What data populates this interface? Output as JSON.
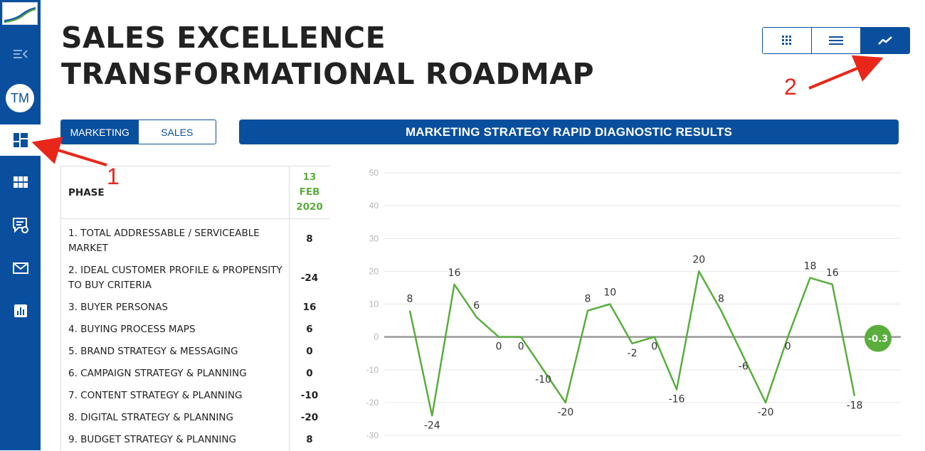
{
  "sidebar": {
    "avatar_initials": "TM",
    "items": [
      {
        "icon": "menu-collapse-icon"
      },
      {
        "icon": "dashboard-icon",
        "active": true
      },
      {
        "icon": "grid-icon"
      },
      {
        "icon": "chat-icon"
      },
      {
        "icon": "mail-icon"
      },
      {
        "icon": "bar-chart-icon"
      }
    ]
  },
  "header": {
    "title_line1": "SALES EXCELLENCE",
    "title_line2": "TRANSFORMATIONAL ROADMAP"
  },
  "view_toggle": {
    "items": [
      {
        "icon": "grid-view-icon"
      },
      {
        "icon": "list-view-icon"
      },
      {
        "icon": "chart-view-icon",
        "active": true
      }
    ]
  },
  "tabs": {
    "marketing": "MARKETING",
    "sales": "SALES",
    "active": "MARKETING"
  },
  "banner": "MARKETING STRATEGY RAPID DIAGNOSTIC RESULTS",
  "table": {
    "header_phase": "PHASE",
    "header_date": [
      "13",
      "FEB",
      "2020"
    ],
    "rows": [
      {
        "phase": "1. TOTAL ADDRESSABLE / SERVICEABLE MARKET",
        "value": "8"
      },
      {
        "phase": "2. IDEAL CUSTOMER PROFILE & PROPENSITY TO BUY CRITERIA",
        "value": "-24"
      },
      {
        "phase": "3. BUYER PERSONAS",
        "value": "16"
      },
      {
        "phase": "4. BUYING PROCESS MAPS",
        "value": "6"
      },
      {
        "phase": "5. BRAND STRATEGY & MESSAGING",
        "value": "0"
      },
      {
        "phase": "6. CAMPAIGN STRATEGY & PLANNING",
        "value": "0"
      },
      {
        "phase": "7. CONTENT STRATEGY & PLANNING",
        "value": "-10"
      },
      {
        "phase": "8. DIGITAL STRATEGY & PLANNING",
        "value": "-20"
      },
      {
        "phase": "9. BUDGET STRATEGY & PLANNING",
        "value": "8"
      }
    ]
  },
  "annotations": {
    "label1": "1",
    "label2": "2",
    "arrow_color": "#e8271a"
  },
  "colors": {
    "brand": "#0a4f9e",
    "series": "#59ae3c",
    "zero_line": "#999999"
  },
  "chart_data": {
    "type": "line",
    "ylim": [
      -30,
      50
    ],
    "yticks": [
      50,
      40,
      30,
      20,
      10,
      0,
      -10,
      -20,
      -30
    ],
    "grid": true,
    "series": [
      {
        "values": [
          8,
          -24,
          16,
          6,
          0,
          0,
          -10,
          -20,
          8,
          10,
          -2,
          0,
          -16,
          20,
          8,
          -6,
          -20,
          0,
          18,
          16,
          -18
        ]
      }
    ],
    "average_badge": "-0.3"
  }
}
